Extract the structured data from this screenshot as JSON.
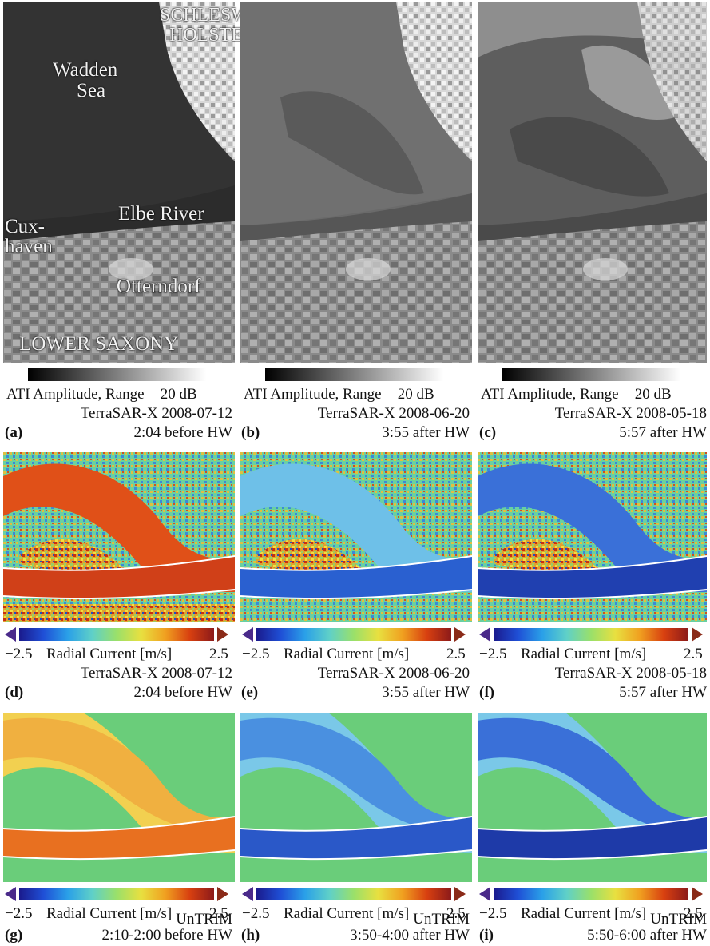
{
  "row1": {
    "panels": [
      {
        "letter": "(a)",
        "cbar_label": "ATI Amplitude, Range = 20 dB",
        "source": "TerraSAR-X 2008-07-12",
        "timing": "2:04 before HW"
      },
      {
        "letter": "(b)",
        "cbar_label": "ATI Amplitude, Range = 20 dB",
        "source": "TerraSAR-X 2008-06-20",
        "timing": "3:55 after HW"
      },
      {
        "letter": "(c)",
        "cbar_label": "ATI Amplitude, Range = 20 dB",
        "source": "TerraSAR-X 2008-05-18",
        "timing": "5:57 after HW"
      }
    ],
    "map_labels": {
      "schleswig": "SCHLESWIG",
      "holstein": "HOLSTEIN",
      "wadden": "Wadden",
      "sea": "Sea",
      "elbe": "Elbe River",
      "cux": "Cux-",
      "haven": "haven",
      "otterndorf": "Otterndorf",
      "lower_saxony": "LOWER SAXONY"
    }
  },
  "row2": {
    "panels": [
      {
        "letter": "(d)",
        "min": "−2.5",
        "label": "Radial Current [m/s]",
        "max": "2.5",
        "source": "TerraSAR-X 2008-07-12",
        "timing": "2:04 before HW"
      },
      {
        "letter": "(e)",
        "min": "−2.5",
        "label": "Radial Current [m/s]",
        "max": "2.5",
        "source": "TerraSAR-X 2008-06-20",
        "timing": "3:55 after HW"
      },
      {
        "letter": "(f)",
        "min": "−2.5",
        "label": "Radial Current [m/s]",
        "max": "2.5",
        "source": "TerraSAR-X 2008-05-18",
        "timing": "5:57 after HW"
      }
    ]
  },
  "row3": {
    "panels": [
      {
        "letter": "(g)",
        "min": "−2.5",
        "label": "Radial Current [m/s]",
        "max": "2.5",
        "source": "UnTRIM",
        "timing": "2:10-2:00 before HW"
      },
      {
        "letter": "(h)",
        "min": "−2.5",
        "label": "Radial Current [m/s]",
        "max": "2.5",
        "source": "UnTRIM",
        "timing": "3:50-4:00 after HW"
      },
      {
        "letter": "(i)",
        "min": "−2.5",
        "label": "Radial Current [m/s]",
        "max": "2.5",
        "source": "UnTRIM",
        "timing": "5:50-6:00 after HW"
      }
    ]
  },
  "colors": {
    "jet": [
      "#1a1a8c",
      "#1f4fd6",
      "#2aa0e8",
      "#5fd0c8",
      "#9ae06a",
      "#e8e040",
      "#f0a020",
      "#d84010",
      "#8c1a1a"
    ],
    "arrow_left": "#4a2a8a",
    "arrow_right": "#8a2a18",
    "water_green": "#6acd7a"
  }
}
